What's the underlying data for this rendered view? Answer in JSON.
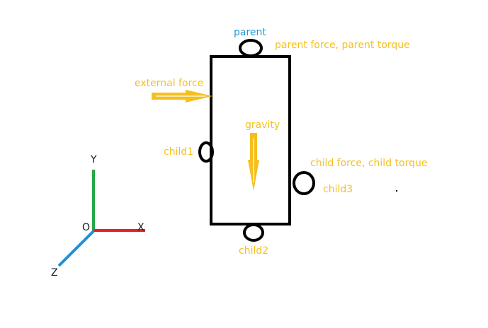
{
  "colors": {
    "annotation": "#f5bf1e",
    "parent_label": "#1d9bd7",
    "outline": "#000000",
    "axis_x": "#e3222a",
    "axis_y": "#27a745",
    "axis_z": "#1e90d8"
  },
  "labels": {
    "parent": "parent",
    "parent_force": "parent force, parent torque",
    "external_force": "external force",
    "gravity": "gravity",
    "child1": "child1",
    "child_force": "child force, child torque",
    "child3": "child3",
    "child2": "child2"
  },
  "axes": {
    "x": "X",
    "y": "Y",
    "z": "Z",
    "origin": "O"
  }
}
